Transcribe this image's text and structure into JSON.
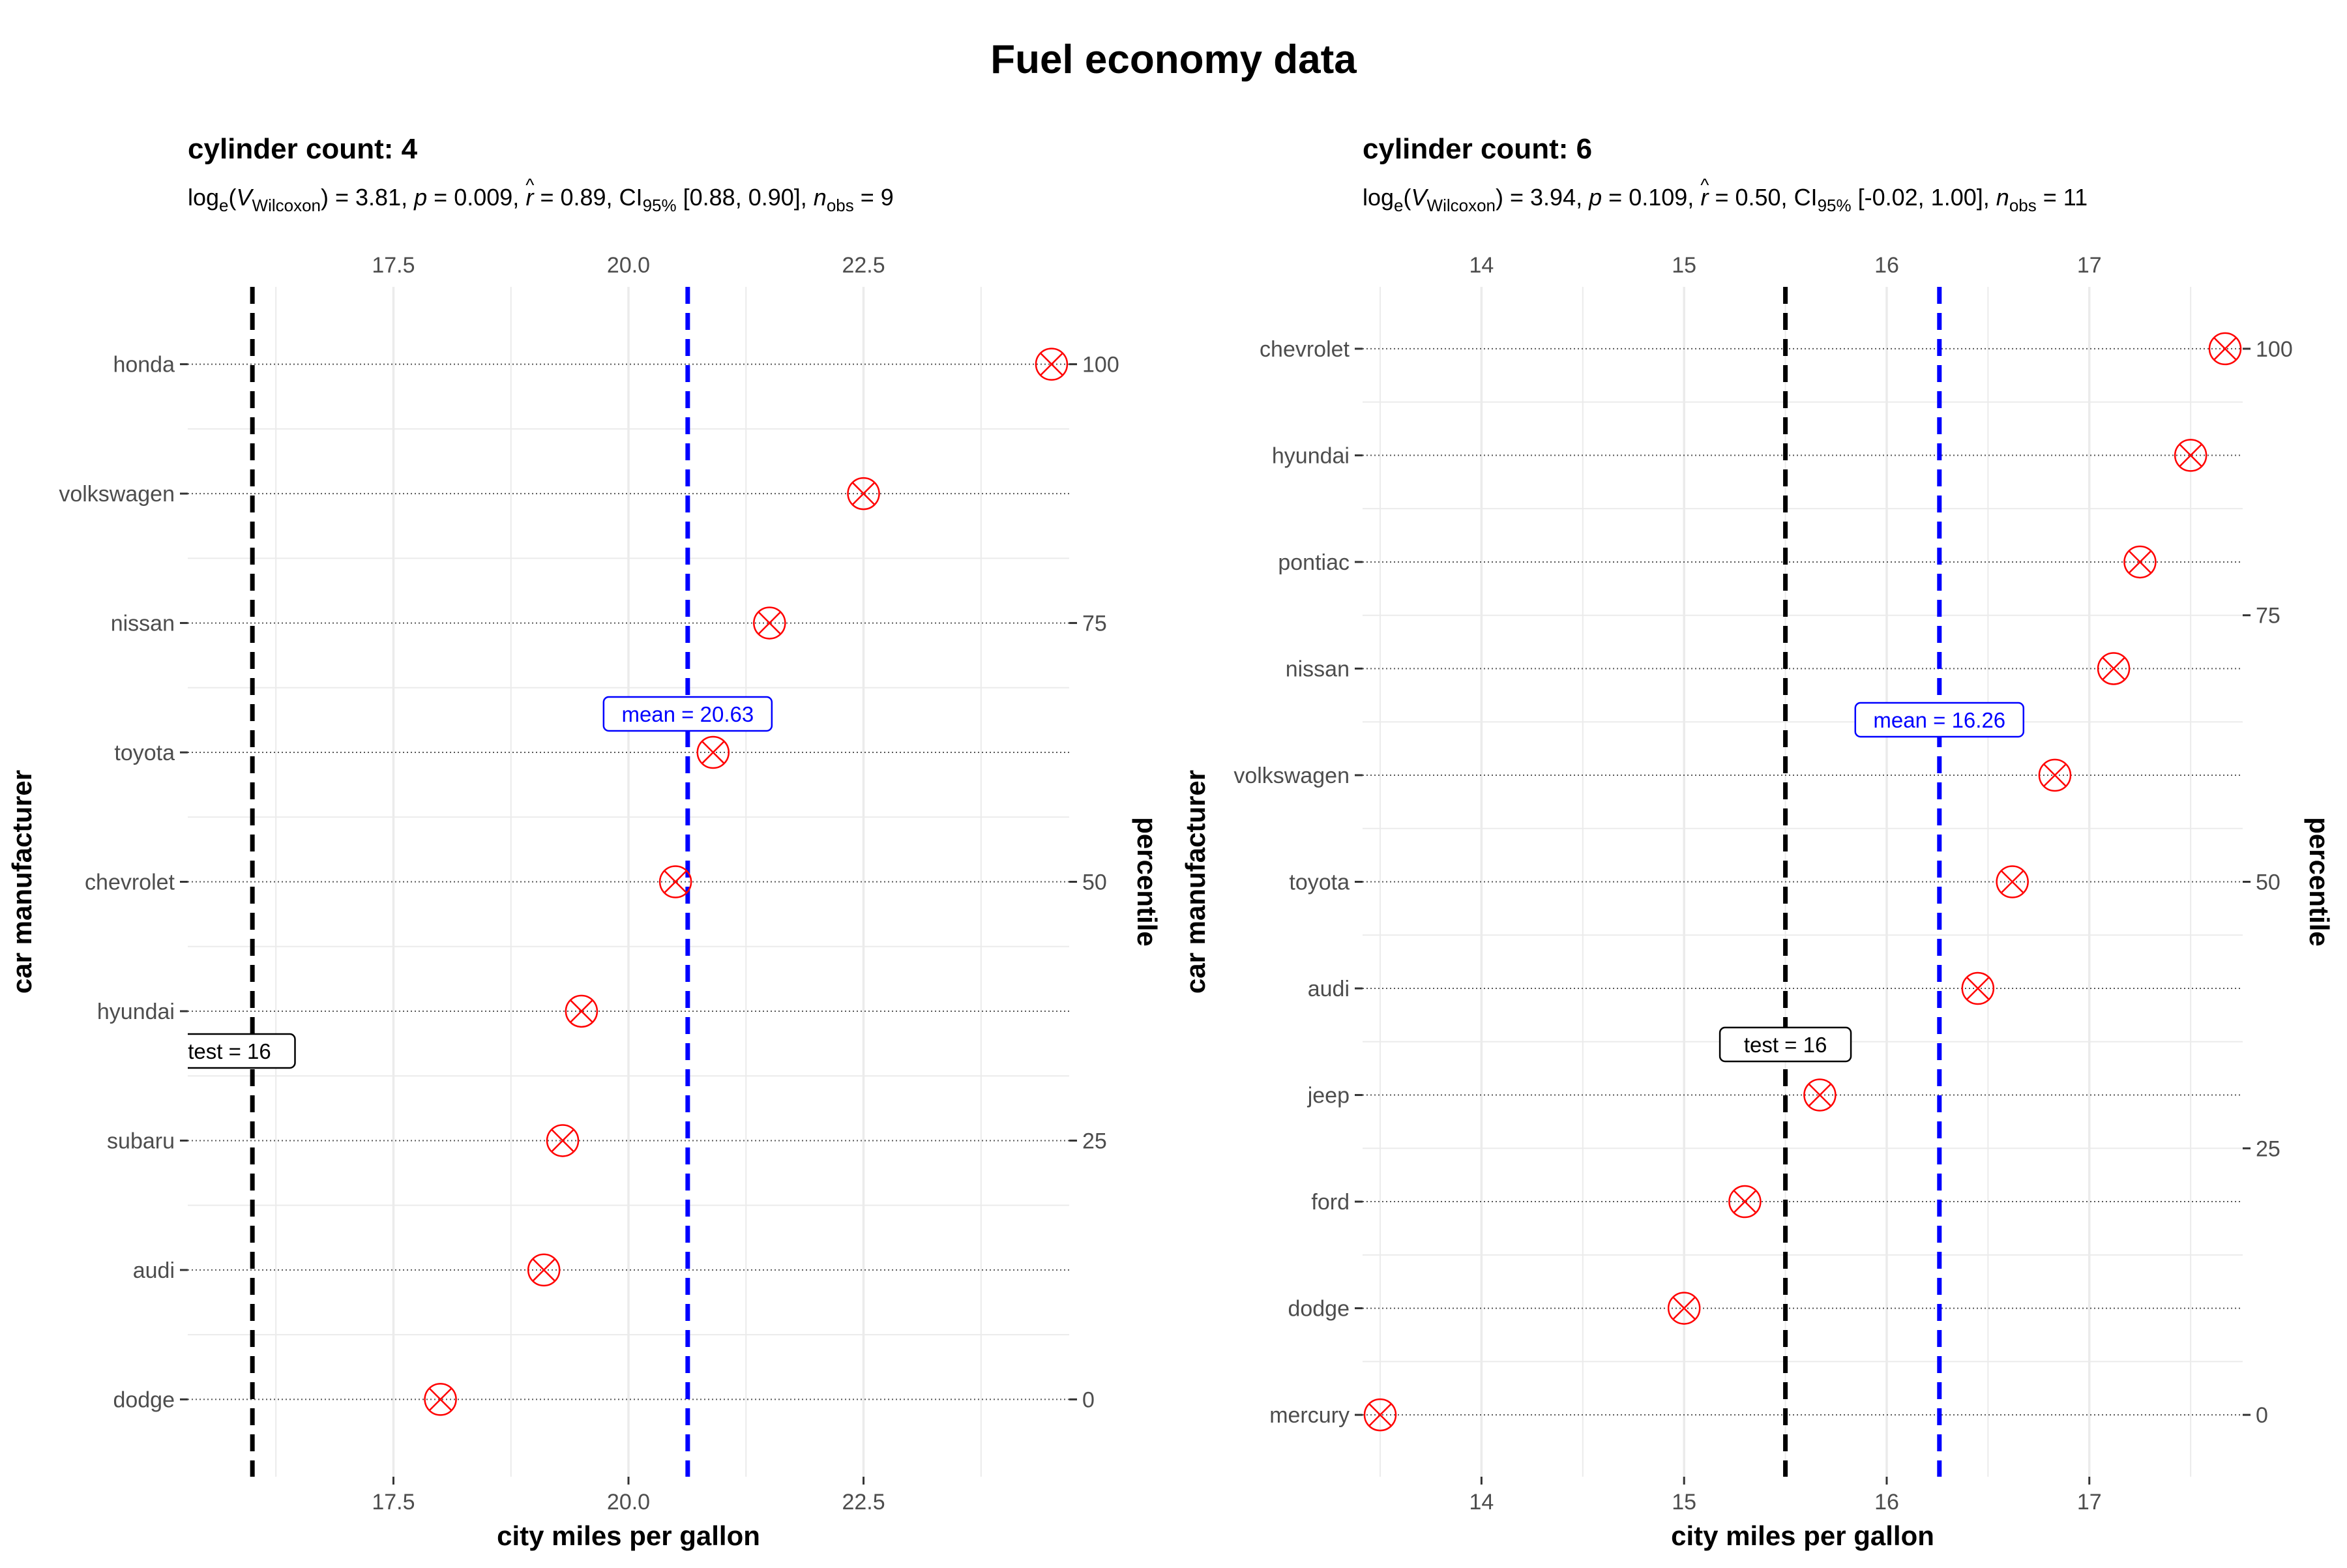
{
  "figure": {
    "title": "Fuel economy data"
  },
  "colors": {
    "point": "#ff0000",
    "mean_line": "#0000ff",
    "test_line": "#000000",
    "grid": "#ebebeb",
    "tick_text": "#4d4d4d"
  },
  "chart_data": [
    {
      "type": "scatter",
      "title": "cylinder count: 4",
      "subtitle": {
        "log_label": "log",
        "log_sub": "e",
        "stat_symbol": "V",
        "stat_sub": "Wilcoxon",
        "stat_value": "3.81",
        "p_symbol": "p",
        "p_value": "0.009",
        "r_symbol": "r",
        "r_hat": "^",
        "r_value": "0.89",
        "ci_label": "CI",
        "ci_sub": "95%",
        "ci_value": "[0.88, 0.90]",
        "n_symbol": "n",
        "n_sub": "obs",
        "n_value": "9"
      },
      "xlabel": "city miles per gallon",
      "ylabel": "car manufacturer",
      "y2label": "percentile",
      "xlim": [
        15.5,
        24.5
      ],
      "x_ticks": [
        17.5,
        20.0,
        22.5
      ],
      "x_tick_labels": [
        "17.5",
        "20.0",
        "22.5"
      ],
      "x_minor": [
        16.25,
        18.75,
        21.25,
        23.75
      ],
      "categories": [
        "honda",
        "volkswagen",
        "nissan",
        "toyota",
        "chevrolet",
        "hyundai",
        "subaru",
        "audi",
        "dodge"
      ],
      "values": [
        24.5,
        22.5,
        21.5,
        20.9,
        20.5,
        19.5,
        19.3,
        19.1,
        18.0
      ],
      "percentile_ticks": [
        100,
        75,
        50,
        25,
        0
      ],
      "percentile_tick_labels": [
        "100",
        "75",
        "50",
        "25",
        "0"
      ],
      "mean": {
        "value": 20.63,
        "label": "mean = 20.63"
      },
      "test": {
        "value": 16,
        "label": "test = 16"
      }
    },
    {
      "type": "scatter",
      "title": "cylinder count: 6",
      "subtitle": {
        "log_label": "log",
        "log_sub": "e",
        "stat_symbol": "V",
        "stat_sub": "Wilcoxon",
        "stat_value": "3.94",
        "p_symbol": "p",
        "p_value": "0.109",
        "r_symbol": "r",
        "r_hat": "^",
        "r_value": "0.50",
        "ci_label": "CI",
        "ci_sub": "95%",
        "ci_value": "[-0.02, 1.00]",
        "n_symbol": "n",
        "n_sub": "obs",
        "n_value": "11"
      },
      "xlabel": "city miles per gallon",
      "ylabel": "car manufacturer",
      "y2label": "percentile",
      "xlim": [
        13.5,
        17.67
      ],
      "x_ticks": [
        14,
        15,
        16,
        17
      ],
      "x_tick_labels": [
        "14",
        "15",
        "16",
        "17"
      ],
      "x_minor": [
        13.5,
        14.5,
        15.5,
        16.5,
        17.5
      ],
      "categories": [
        "chevrolet",
        "hyundai",
        "pontiac",
        "nissan",
        "volkswagen",
        "toyota",
        "audi",
        "jeep",
        "ford",
        "dodge",
        "mercury"
      ],
      "values": [
        17.67,
        17.5,
        17.25,
        17.12,
        16.83,
        16.62,
        16.45,
        15.67,
        15.3,
        15.0,
        13.5
      ],
      "percentile_ticks": [
        100,
        75,
        50,
        25,
        0
      ],
      "percentile_tick_labels": [
        "100",
        "75",
        "50",
        "25",
        "0"
      ],
      "mean": {
        "value": 16.26,
        "label": "mean = 16.26"
      },
      "test": {
        "value": 15.5,
        "label": "test = 16"
      }
    }
  ]
}
